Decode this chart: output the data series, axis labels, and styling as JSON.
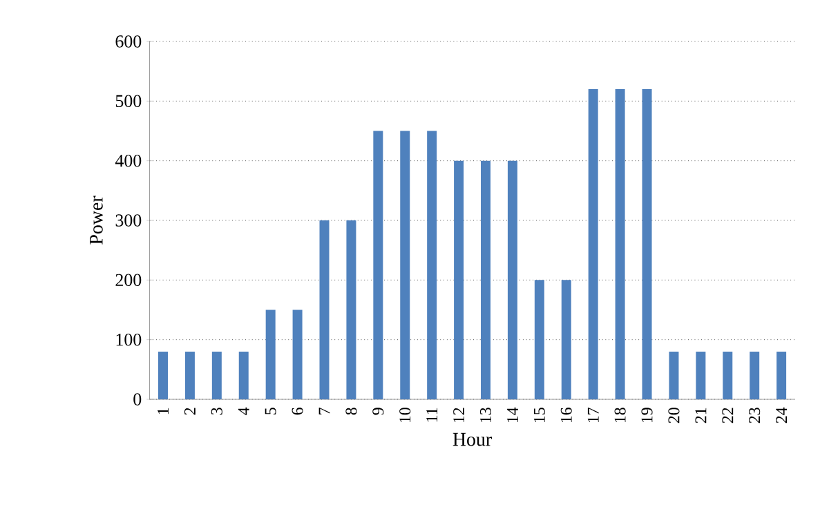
{
  "chart_data": {
    "type": "bar",
    "xlabel": "Hour",
    "ylabel": "Power",
    "categories": [
      "1",
      "2",
      "3",
      "4",
      "5",
      "6",
      "7",
      "8",
      "9",
      "10",
      "11",
      "12",
      "13",
      "14",
      "15",
      "16",
      "17",
      "18",
      "19",
      "20",
      "21",
      "22",
      "23",
      "24"
    ],
    "values": [
      80,
      80,
      80,
      80,
      150,
      150,
      300,
      300,
      450,
      450,
      450,
      400,
      400,
      400,
      200,
      200,
      520,
      520,
      520,
      80,
      80,
      80,
      80,
      80
    ],
    "color": "#4f81bd",
    "ylim": [
      0,
      600
    ],
    "yticks": [
      0,
      100,
      200,
      300,
      400,
      500,
      600
    ],
    "grid": "y"
  }
}
